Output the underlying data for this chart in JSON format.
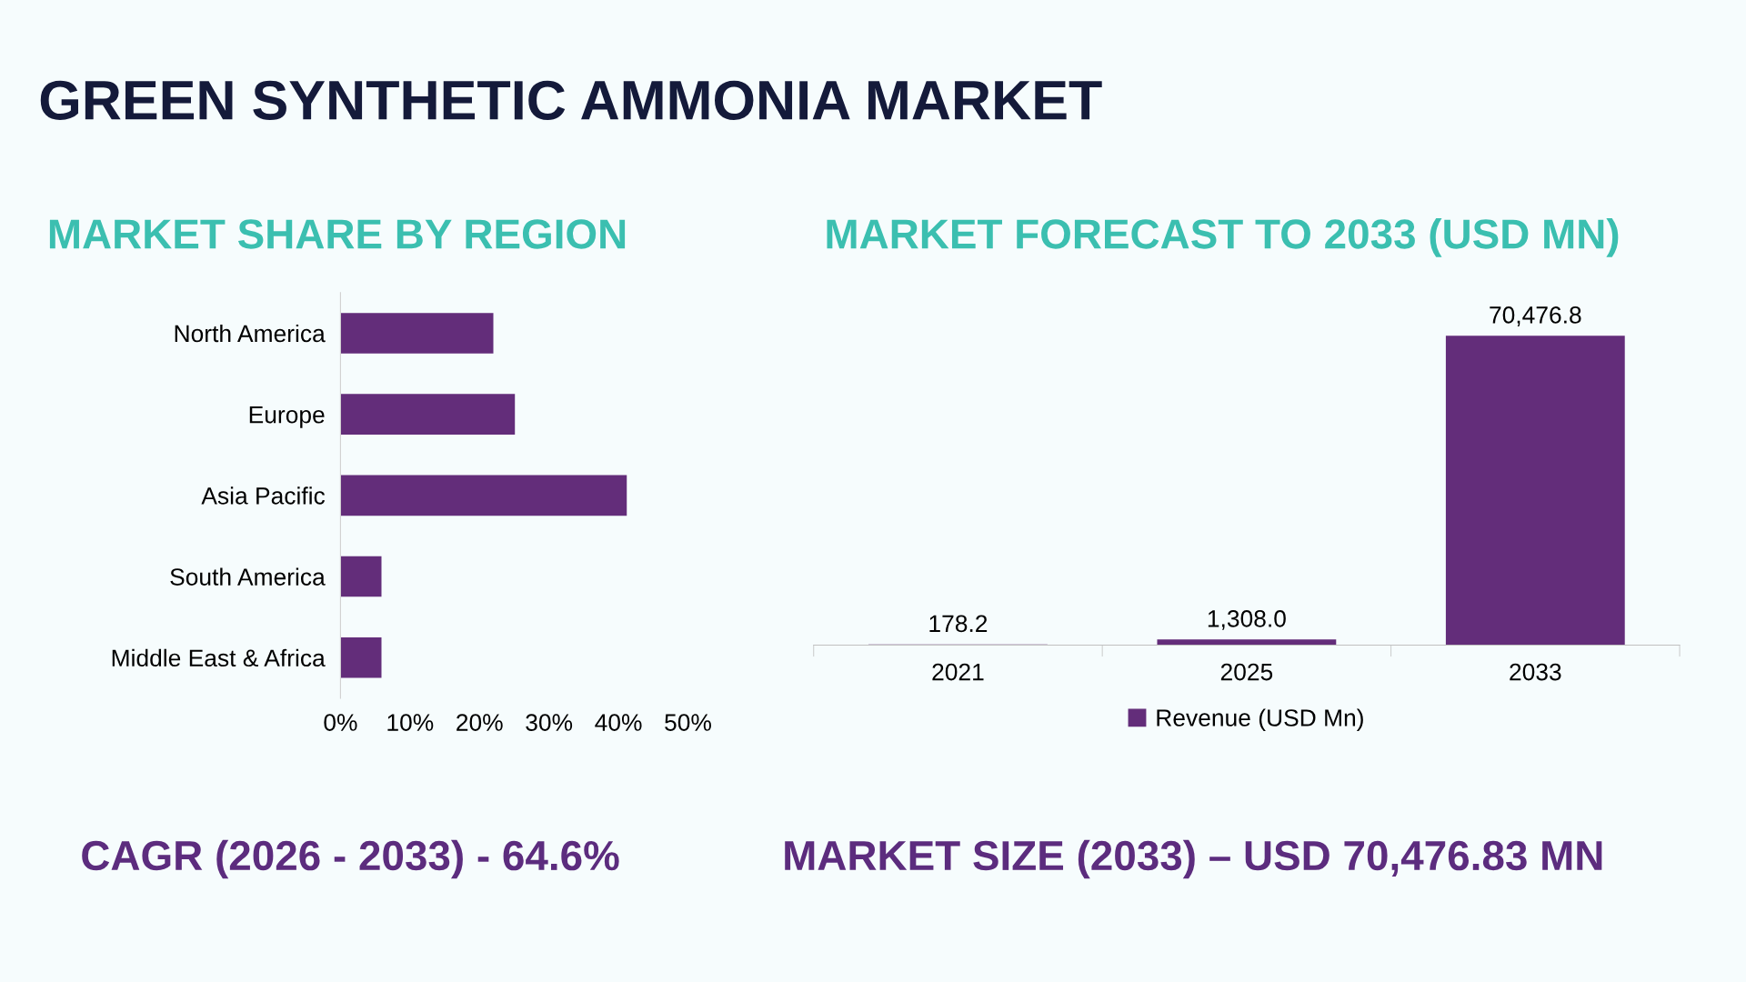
{
  "chart_data": [
    {
      "type": "bar",
      "orientation": "horizontal",
      "title": "MARKET SHARE BY REGION",
      "categories": [
        "North America",
        "Europe",
        "Asia Pacific",
        "South America",
        "Middle East & Africa"
      ],
      "values": [
        22.0,
        25.1,
        41.2,
        5.9,
        5.9
      ],
      "color": "#632d7a",
      "xlim": [
        0,
        50
      ],
      "xticks": [
        {
          "value": 0,
          "label": "0%"
        },
        {
          "value": 10,
          "label": "10%"
        },
        {
          "value": 20,
          "label": "20%"
        },
        {
          "value": 30,
          "label": "30%"
        },
        {
          "value": 40,
          "label": "40%"
        },
        {
          "value": 50,
          "label": "50%"
        }
      ],
      "grid": false,
      "legend": false,
      "annotations": [
        "GREEN SYNTHETIC AMMONIA MARKET",
        "CAGR (2026 - 2033) - 64.6%"
      ]
    },
    {
      "type": "bar",
      "title": "MARKET FORECAST TO 2033 (USD MN)",
      "categories": [
        "2021",
        "2025",
        "2033"
      ],
      "series": [
        {
          "name": "Revenue (USD Mn)",
          "color": "#632d7a",
          "values": [
            178.2,
            1308.0,
            70476.8
          ],
          "value_labels": [
            "178.2",
            "1,308.0",
            "70,476.8"
          ]
        }
      ],
      "grid": false,
      "legend": "bottom",
      "annotations": [
        "MARKET SIZE (2033) – USD 70,476.83 MN"
      ]
    }
  ]
}
